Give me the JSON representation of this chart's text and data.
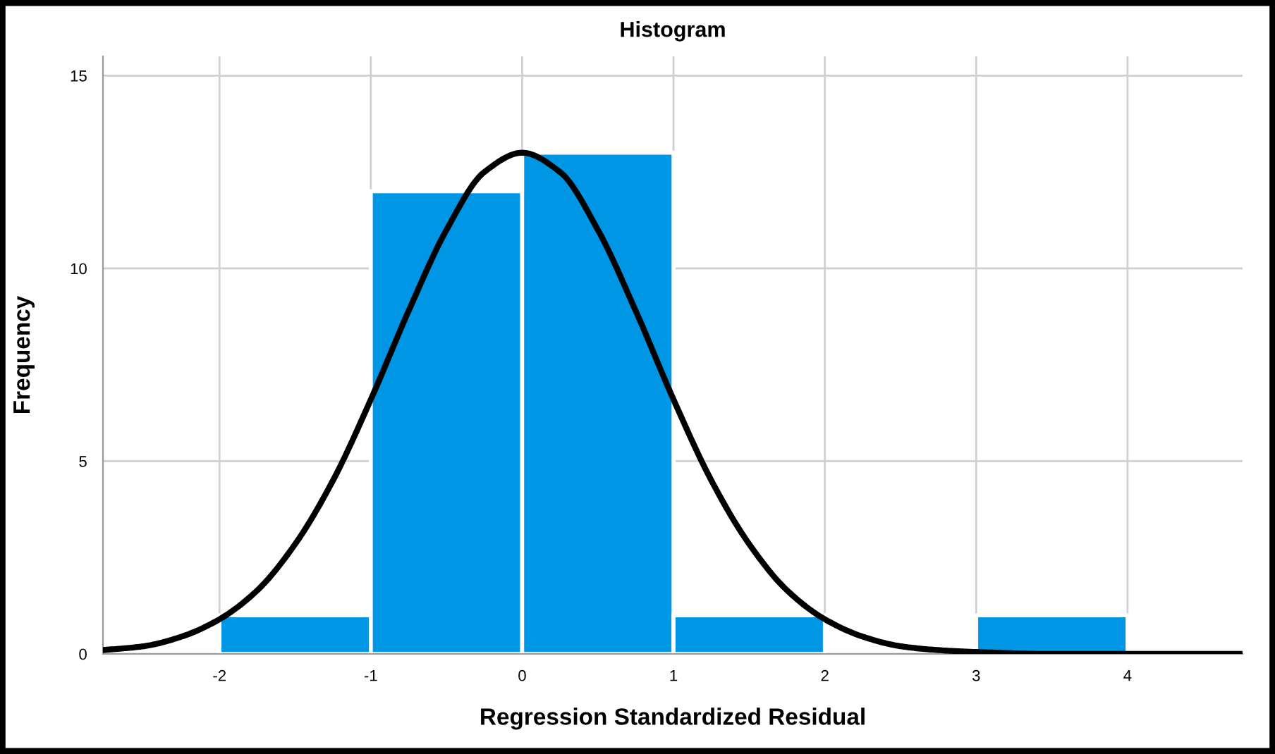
{
  "chart_data": {
    "type": "histogram",
    "title": "Histogram",
    "xlabel": "Regression Standardized Residual",
    "ylabel": "Frequency",
    "bins": [
      -2,
      -1,
      0,
      1,
      2,
      3,
      4
    ],
    "values": [
      1,
      12,
      13,
      1,
      0,
      1
    ],
    "color": "#0096e6",
    "series": [
      {
        "type": "line",
        "color": "#000000",
        "x": [
          -2.77,
          -2.5,
          -2.25,
          -2,
          -1.75,
          -1.5,
          -1.25,
          -1,
          -0.75,
          -0.5,
          -0.25,
          0,
          0.25,
          0.5,
          0.75,
          1,
          1.25,
          1.5,
          1.75,
          2,
          2.25,
          2.5,
          2.75,
          3,
          3.5,
          4,
          4.5,
          4.76
        ],
        "values": [
          0.1,
          0.2,
          0.45,
          0.9,
          1.65,
          2.85,
          4.5,
          6.6,
          8.9,
          11,
          12.5,
          13,
          12.5,
          11,
          8.9,
          6.6,
          4.5,
          2.85,
          1.65,
          0.9,
          0.45,
          0.2,
          0.1,
          0.05,
          0,
          0,
          0,
          0
        ]
      }
    ],
    "xlim": [
      -2.77,
      4.76
    ],
    "xticks": [
      -2,
      -1,
      0,
      1,
      2,
      3,
      4
    ],
    "ylim": [
      0,
      15.5
    ],
    "yticks": [
      0,
      5,
      10,
      15
    ],
    "grid": true
  }
}
